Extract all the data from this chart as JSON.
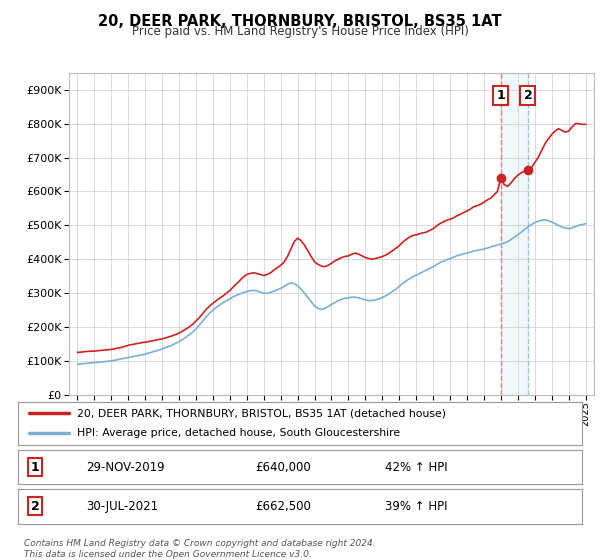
{
  "title": "20, DEER PARK, THORNBURY, BRISTOL, BS35 1AT",
  "subtitle": "Price paid vs. HM Land Registry's House Price Index (HPI)",
  "background_color": "#ffffff",
  "plot_bg_color": "#ffffff",
  "grid_color": "#cccccc",
  "red_line_color": "#cc2222",
  "blue_line_color": "#7bafd4",
  "shade_color": "#d0e8f8",
  "vline1_color": "#e08080",
  "vline2_color": "#a0c0e0",
  "marker1_year": 2020.0,
  "marker1_value": 640000,
  "marker2_year": 2021.6,
  "marker2_value": 662500,
  "legend_entry1": "20, DEER PARK, THORNBURY, BRISTOL, BS35 1AT (detached house)",
  "legend_entry2": "HPI: Average price, detached house, South Gloucestershire",
  "table_row1": [
    "1",
    "29-NOV-2019",
    "£640,000",
    "42% ↑ HPI"
  ],
  "table_row2": [
    "2",
    "30-JUL-2021",
    "£662,500",
    "39% ↑ HPI"
  ],
  "footer": "Contains HM Land Registry data © Crown copyright and database right 2024.\nThis data is licensed under the Open Government Licence v3.0.",
  "ylim": [
    0,
    950000
  ],
  "xlim_start": 1994.5,
  "xlim_end": 2025.5,
  "red_data": [
    [
      1995.0,
      125000
    ],
    [
      1995.2,
      126000
    ],
    [
      1995.4,
      127000
    ],
    [
      1995.6,
      128000
    ],
    [
      1995.8,
      128500
    ],
    [
      1996.0,
      129000
    ],
    [
      1996.2,
      130000
    ],
    [
      1996.4,
      131000
    ],
    [
      1996.6,
      132000
    ],
    [
      1996.8,
      133000
    ],
    [
      1997.0,
      134000
    ],
    [
      1997.2,
      136000
    ],
    [
      1997.4,
      138000
    ],
    [
      1997.6,
      140000
    ],
    [
      1997.8,
      143000
    ],
    [
      1998.0,
      146000
    ],
    [
      1998.2,
      148000
    ],
    [
      1998.4,
      150000
    ],
    [
      1998.6,
      152000
    ],
    [
      1998.8,
      154000
    ],
    [
      1999.0,
      155000
    ],
    [
      1999.2,
      157000
    ],
    [
      1999.4,
      159000
    ],
    [
      1999.6,
      161000
    ],
    [
      1999.8,
      163000
    ],
    [
      2000.0,
      165000
    ],
    [
      2000.2,
      168000
    ],
    [
      2000.4,
      171000
    ],
    [
      2000.6,
      174000
    ],
    [
      2000.8,
      178000
    ],
    [
      2001.0,
      182000
    ],
    [
      2001.2,
      188000
    ],
    [
      2001.4,
      194000
    ],
    [
      2001.6,
      200000
    ],
    [
      2001.8,
      208000
    ],
    [
      2002.0,
      218000
    ],
    [
      2002.2,
      228000
    ],
    [
      2002.4,
      240000
    ],
    [
      2002.6,
      252000
    ],
    [
      2002.8,
      262000
    ],
    [
      2003.0,
      270000
    ],
    [
      2003.2,
      278000
    ],
    [
      2003.4,
      285000
    ],
    [
      2003.6,
      292000
    ],
    [
      2003.8,
      300000
    ],
    [
      2004.0,
      308000
    ],
    [
      2004.2,
      318000
    ],
    [
      2004.4,
      328000
    ],
    [
      2004.6,
      338000
    ],
    [
      2004.8,
      348000
    ],
    [
      2005.0,
      355000
    ],
    [
      2005.2,
      358000
    ],
    [
      2005.4,
      360000
    ],
    [
      2005.6,
      358000
    ],
    [
      2005.8,
      355000
    ],
    [
      2006.0,
      352000
    ],
    [
      2006.2,
      355000
    ],
    [
      2006.4,
      360000
    ],
    [
      2006.6,
      368000
    ],
    [
      2006.8,
      375000
    ],
    [
      2007.0,
      382000
    ],
    [
      2007.2,
      392000
    ],
    [
      2007.4,
      408000
    ],
    [
      2007.6,
      430000
    ],
    [
      2007.8,
      452000
    ],
    [
      2008.0,
      462000
    ],
    [
      2008.2,
      455000
    ],
    [
      2008.4,
      442000
    ],
    [
      2008.6,
      425000
    ],
    [
      2008.8,
      408000
    ],
    [
      2009.0,
      392000
    ],
    [
      2009.2,
      385000
    ],
    [
      2009.4,
      380000
    ],
    [
      2009.6,
      378000
    ],
    [
      2009.8,
      382000
    ],
    [
      2010.0,
      388000
    ],
    [
      2010.2,
      395000
    ],
    [
      2010.4,
      400000
    ],
    [
      2010.6,
      405000
    ],
    [
      2010.8,
      408000
    ],
    [
      2011.0,
      410000
    ],
    [
      2011.2,
      415000
    ],
    [
      2011.4,
      418000
    ],
    [
      2011.6,
      415000
    ],
    [
      2011.8,
      410000
    ],
    [
      2012.0,
      405000
    ],
    [
      2012.2,
      402000
    ],
    [
      2012.4,
      400000
    ],
    [
      2012.6,
      402000
    ],
    [
      2012.8,
      405000
    ],
    [
      2013.0,
      408000
    ],
    [
      2013.2,
      412000
    ],
    [
      2013.4,
      418000
    ],
    [
      2013.6,
      425000
    ],
    [
      2013.8,
      432000
    ],
    [
      2014.0,
      440000
    ],
    [
      2014.2,
      450000
    ],
    [
      2014.4,
      458000
    ],
    [
      2014.6,
      465000
    ],
    [
      2014.8,
      470000
    ],
    [
      2015.0,
      472000
    ],
    [
      2015.2,
      475000
    ],
    [
      2015.4,
      478000
    ],
    [
      2015.6,
      480000
    ],
    [
      2015.8,
      485000
    ],
    [
      2016.0,
      490000
    ],
    [
      2016.2,
      498000
    ],
    [
      2016.4,
      505000
    ],
    [
      2016.6,
      510000
    ],
    [
      2016.8,
      515000
    ],
    [
      2017.0,
      518000
    ],
    [
      2017.2,
      522000
    ],
    [
      2017.4,
      528000
    ],
    [
      2017.6,
      532000
    ],
    [
      2017.8,
      538000
    ],
    [
      2018.0,
      542000
    ],
    [
      2018.2,
      548000
    ],
    [
      2018.4,
      555000
    ],
    [
      2018.6,
      558000
    ],
    [
      2018.8,
      562000
    ],
    [
      2019.0,
      568000
    ],
    [
      2019.2,
      575000
    ],
    [
      2019.4,
      580000
    ],
    [
      2019.6,
      590000
    ],
    [
      2019.8,
      600000
    ],
    [
      2020.0,
      640000
    ],
    [
      2020.2,
      620000
    ],
    [
      2020.4,
      615000
    ],
    [
      2020.6,
      625000
    ],
    [
      2020.8,
      638000
    ],
    [
      2021.0,
      648000
    ],
    [
      2021.2,
      655000
    ],
    [
      2021.4,
      660000
    ],
    [
      2021.6,
      662500
    ],
    [
      2021.8,
      670000
    ],
    [
      2022.0,
      685000
    ],
    [
      2022.2,
      700000
    ],
    [
      2022.4,
      720000
    ],
    [
      2022.6,
      740000
    ],
    [
      2022.8,
      755000
    ],
    [
      2023.0,
      768000
    ],
    [
      2023.2,
      778000
    ],
    [
      2023.4,
      785000
    ],
    [
      2023.6,
      780000
    ],
    [
      2023.8,
      775000
    ],
    [
      2024.0,
      778000
    ],
    [
      2024.2,
      790000
    ],
    [
      2024.4,
      800000
    ],
    [
      2024.6,
      800000
    ],
    [
      2024.8,
      798000
    ],
    [
      2025.0,
      798000
    ]
  ],
  "blue_data": [
    [
      1995.0,
      90000
    ],
    [
      1995.2,
      91000
    ],
    [
      1995.4,
      92000
    ],
    [
      1995.6,
      93000
    ],
    [
      1995.8,
      94000
    ],
    [
      1996.0,
      95000
    ],
    [
      1996.2,
      96000
    ],
    [
      1996.4,
      97000
    ],
    [
      1996.6,
      98000
    ],
    [
      1996.8,
      99000
    ],
    [
      1997.0,
      100000
    ],
    [
      1997.2,
      102000
    ],
    [
      1997.4,
      104000
    ],
    [
      1997.6,
      106000
    ],
    [
      1997.8,
      108000
    ],
    [
      1998.0,
      110000
    ],
    [
      1998.2,
      112000
    ],
    [
      1998.4,
      114000
    ],
    [
      1998.6,
      116000
    ],
    [
      1998.8,
      118000
    ],
    [
      1999.0,
      120000
    ],
    [
      1999.2,
      123000
    ],
    [
      1999.4,
      126000
    ],
    [
      1999.6,
      129000
    ],
    [
      1999.8,
      132000
    ],
    [
      2000.0,
      135000
    ],
    [
      2000.2,
      139000
    ],
    [
      2000.4,
      143000
    ],
    [
      2000.6,
      147000
    ],
    [
      2000.8,
      152000
    ],
    [
      2001.0,
      157000
    ],
    [
      2001.2,
      163000
    ],
    [
      2001.4,
      170000
    ],
    [
      2001.6,
      177000
    ],
    [
      2001.8,
      185000
    ],
    [
      2002.0,
      195000
    ],
    [
      2002.2,
      206000
    ],
    [
      2002.4,
      218000
    ],
    [
      2002.6,
      230000
    ],
    [
      2002.8,
      241000
    ],
    [
      2003.0,
      250000
    ],
    [
      2003.2,
      258000
    ],
    [
      2003.4,
      265000
    ],
    [
      2003.6,
      272000
    ],
    [
      2003.8,
      278000
    ],
    [
      2004.0,
      283000
    ],
    [
      2004.2,
      289000
    ],
    [
      2004.4,
      294000
    ],
    [
      2004.6,
      298000
    ],
    [
      2004.8,
      302000
    ],
    [
      2005.0,
      305000
    ],
    [
      2005.2,
      307000
    ],
    [
      2005.4,
      308000
    ],
    [
      2005.6,
      306000
    ],
    [
      2005.8,
      303000
    ],
    [
      2006.0,
      300000
    ],
    [
      2006.2,
      300000
    ],
    [
      2006.4,
      302000
    ],
    [
      2006.6,
      306000
    ],
    [
      2006.8,
      310000
    ],
    [
      2007.0,
      314000
    ],
    [
      2007.2,
      320000
    ],
    [
      2007.4,
      326000
    ],
    [
      2007.6,
      330000
    ],
    [
      2007.8,
      328000
    ],
    [
      2008.0,
      322000
    ],
    [
      2008.2,
      312000
    ],
    [
      2008.4,
      300000
    ],
    [
      2008.6,
      287000
    ],
    [
      2008.8,
      275000
    ],
    [
      2009.0,
      262000
    ],
    [
      2009.2,
      255000
    ],
    [
      2009.4,
      252000
    ],
    [
      2009.6,
      255000
    ],
    [
      2009.8,
      260000
    ],
    [
      2010.0,
      267000
    ],
    [
      2010.2,
      272000
    ],
    [
      2010.4,
      278000
    ],
    [
      2010.6,
      282000
    ],
    [
      2010.8,
      285000
    ],
    [
      2011.0,
      286000
    ],
    [
      2011.2,
      288000
    ],
    [
      2011.4,
      288000
    ],
    [
      2011.6,
      286000
    ],
    [
      2011.8,
      283000
    ],
    [
      2012.0,
      280000
    ],
    [
      2012.2,
      278000
    ],
    [
      2012.4,
      278000
    ],
    [
      2012.6,
      280000
    ],
    [
      2012.8,
      283000
    ],
    [
      2013.0,
      287000
    ],
    [
      2013.2,
      292000
    ],
    [
      2013.4,
      298000
    ],
    [
      2013.6,
      305000
    ],
    [
      2013.8,
      312000
    ],
    [
      2014.0,
      320000
    ],
    [
      2014.2,
      328000
    ],
    [
      2014.4,
      336000
    ],
    [
      2014.6,
      342000
    ],
    [
      2014.8,
      348000
    ],
    [
      2015.0,
      353000
    ],
    [
      2015.2,
      358000
    ],
    [
      2015.4,
      363000
    ],
    [
      2015.6,
      368000
    ],
    [
      2015.8,
      373000
    ],
    [
      2016.0,
      378000
    ],
    [
      2016.2,
      384000
    ],
    [
      2016.4,
      390000
    ],
    [
      2016.6,
      394000
    ],
    [
      2016.8,
      398000
    ],
    [
      2017.0,
      402000
    ],
    [
      2017.2,
      406000
    ],
    [
      2017.4,
      410000
    ],
    [
      2017.6,
      413000
    ],
    [
      2017.8,
      416000
    ],
    [
      2018.0,
      418000
    ],
    [
      2018.2,
      421000
    ],
    [
      2018.4,
      424000
    ],
    [
      2018.6,
      426000
    ],
    [
      2018.8,
      428000
    ],
    [
      2019.0,
      430000
    ],
    [
      2019.2,
      433000
    ],
    [
      2019.4,
      436000
    ],
    [
      2019.6,
      439000
    ],
    [
      2019.8,
      442000
    ],
    [
      2020.0,
      445000
    ],
    [
      2020.2,
      448000
    ],
    [
      2020.4,
      452000
    ],
    [
      2020.6,
      458000
    ],
    [
      2020.8,
      465000
    ],
    [
      2021.0,
      472000
    ],
    [
      2021.2,
      480000
    ],
    [
      2021.4,
      488000
    ],
    [
      2021.6,
      495000
    ],
    [
      2021.8,
      502000
    ],
    [
      2022.0,
      508000
    ],
    [
      2022.2,
      512000
    ],
    [
      2022.4,
      515000
    ],
    [
      2022.6,
      516000
    ],
    [
      2022.8,
      514000
    ],
    [
      2023.0,
      510000
    ],
    [
      2023.2,
      505000
    ],
    [
      2023.4,
      500000
    ],
    [
      2023.6,
      495000
    ],
    [
      2023.8,
      492000
    ],
    [
      2024.0,
      490000
    ],
    [
      2024.2,
      493000
    ],
    [
      2024.4,
      496000
    ],
    [
      2024.6,
      500000
    ],
    [
      2024.8,
      502000
    ],
    [
      2025.0,
      505000
    ]
  ]
}
